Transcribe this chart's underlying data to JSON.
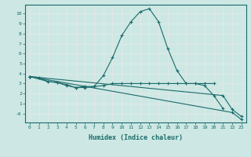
{
  "bg_color": "#cde8e4",
  "grid_color": "#e8e8e8",
  "line_color": "#1a6b6b",
  "xlabel": "Humidex (Indice chaleur)",
  "xlim": [
    -0.5,
    23.5
  ],
  "ylim": [
    -0.9,
    10.9
  ],
  "xticks": [
    0,
    1,
    2,
    3,
    4,
    5,
    6,
    7,
    8,
    9,
    10,
    11,
    12,
    13,
    14,
    15,
    16,
    17,
    18,
    19,
    20,
    21,
    22,
    23
  ],
  "yticks": [
    0,
    1,
    2,
    3,
    4,
    5,
    6,
    7,
    8,
    9,
    10
  ],
  "ytick_labels": [
    "-0",
    "1",
    "2",
    "3",
    "4",
    "5",
    "6",
    "7",
    "8",
    "9",
    "10"
  ],
  "lines": [
    {
      "x": [
        0,
        1,
        2,
        3,
        4,
        5,
        6,
        7,
        8,
        9,
        10,
        11,
        12,
        13,
        14,
        15,
        16,
        17,
        18,
        19,
        20,
        21
      ],
      "y": [
        3.7,
        3.6,
        3.2,
        3.1,
        2.8,
        2.6,
        2.7,
        2.7,
        3.8,
        5.6,
        7.8,
        9.2,
        10.2,
        10.5,
        9.2,
        6.5,
        4.3,
        3.0,
        3.0,
        2.8,
        1.8,
        0.5
      ]
    },
    {
      "x": [
        0,
        2,
        3,
        4,
        5,
        6,
        7,
        8,
        9,
        10,
        11,
        12,
        13,
        14,
        15,
        16,
        17,
        18,
        19,
        20
      ],
      "y": [
        3.7,
        3.2,
        3.1,
        2.9,
        2.6,
        2.6,
        2.7,
        2.8,
        3.0,
        3.0,
        3.0,
        3.0,
        3.0,
        3.0,
        3.0,
        3.0,
        3.0,
        3.0,
        3.0,
        3.0
      ]
    },
    {
      "x": [
        0,
        21,
        22,
        23
      ],
      "y": [
        3.7,
        1.8,
        0.4,
        -0.3
      ]
    },
    {
      "x": [
        0,
        22,
        23
      ],
      "y": [
        3.7,
        0.1,
        -0.6
      ]
    }
  ]
}
